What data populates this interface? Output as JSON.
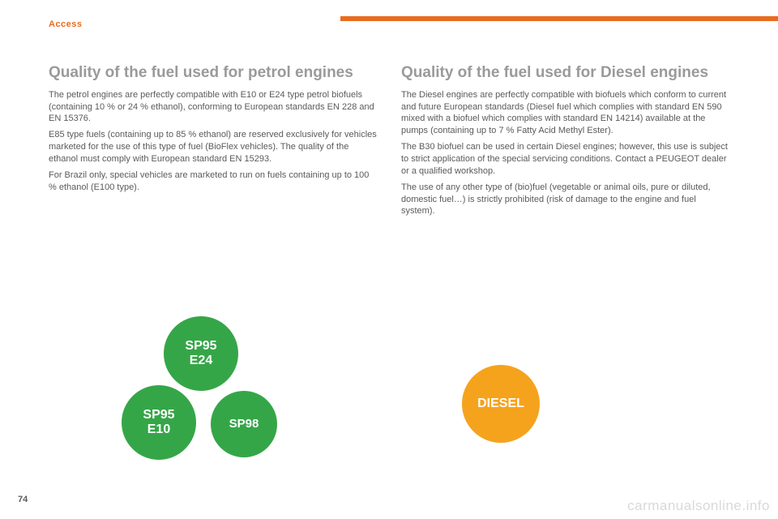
{
  "colors": {
    "accent": "#e86b1e",
    "text": "#5a5a5a",
    "heading": "#9a9a9a",
    "petrol_circle": "#35a648",
    "diesel_circle": "#f5a31d",
    "page_bg": "#ffffff",
    "watermark": "#d9d9d9"
  },
  "header": {
    "section": "Access"
  },
  "page_number": "74",
  "watermark": "carmanualsonline.info",
  "petrol": {
    "title": "Quality of the fuel used for petrol engines",
    "para1": "The petrol engines are perfectly compatible with E10 or E24 type petrol biofuels (containing 10 % or 24 % ethanol), conforming to European standards EN 228 and EN 15376.",
    "para2": "E85 type fuels (containing up to 85 % ethanol) are reserved exclusively for vehicles marketed for the use of this type of fuel (BioFlex vehicles). The quality of the ethanol must comply with European standard EN 15293.",
    "para3": "For Brazil only, special vehicles are marketed to run on fuels containing up to 100 % ethanol (E100 type).",
    "circles": {
      "top": "SP95\nE24",
      "left": "SP95\nE10",
      "right": "SP98"
    }
  },
  "diesel": {
    "title": "Quality of the fuel used for Diesel engines",
    "para1": "The Diesel engines are perfectly compatible with biofuels which conform to current and future European standards (Diesel fuel which complies with standard EN 590 mixed with a biofuel which complies with standard EN 14214) available at the pumps (containing up to 7 % Fatty Acid Methyl Ester).",
    "para2": "The B30 biofuel can be used in certain Diesel engines; however, this use is subject to strict application of the special servicing conditions. Contact a PEUGEOT dealer or a qualified workshop.",
    "para3": "The use of any other type of (bio)fuel (vegetable or animal oils, pure or diluted, domestic fuel…) is strictly prohibited (risk of damage to the engine and fuel system).",
    "circle": "DIESEL"
  }
}
